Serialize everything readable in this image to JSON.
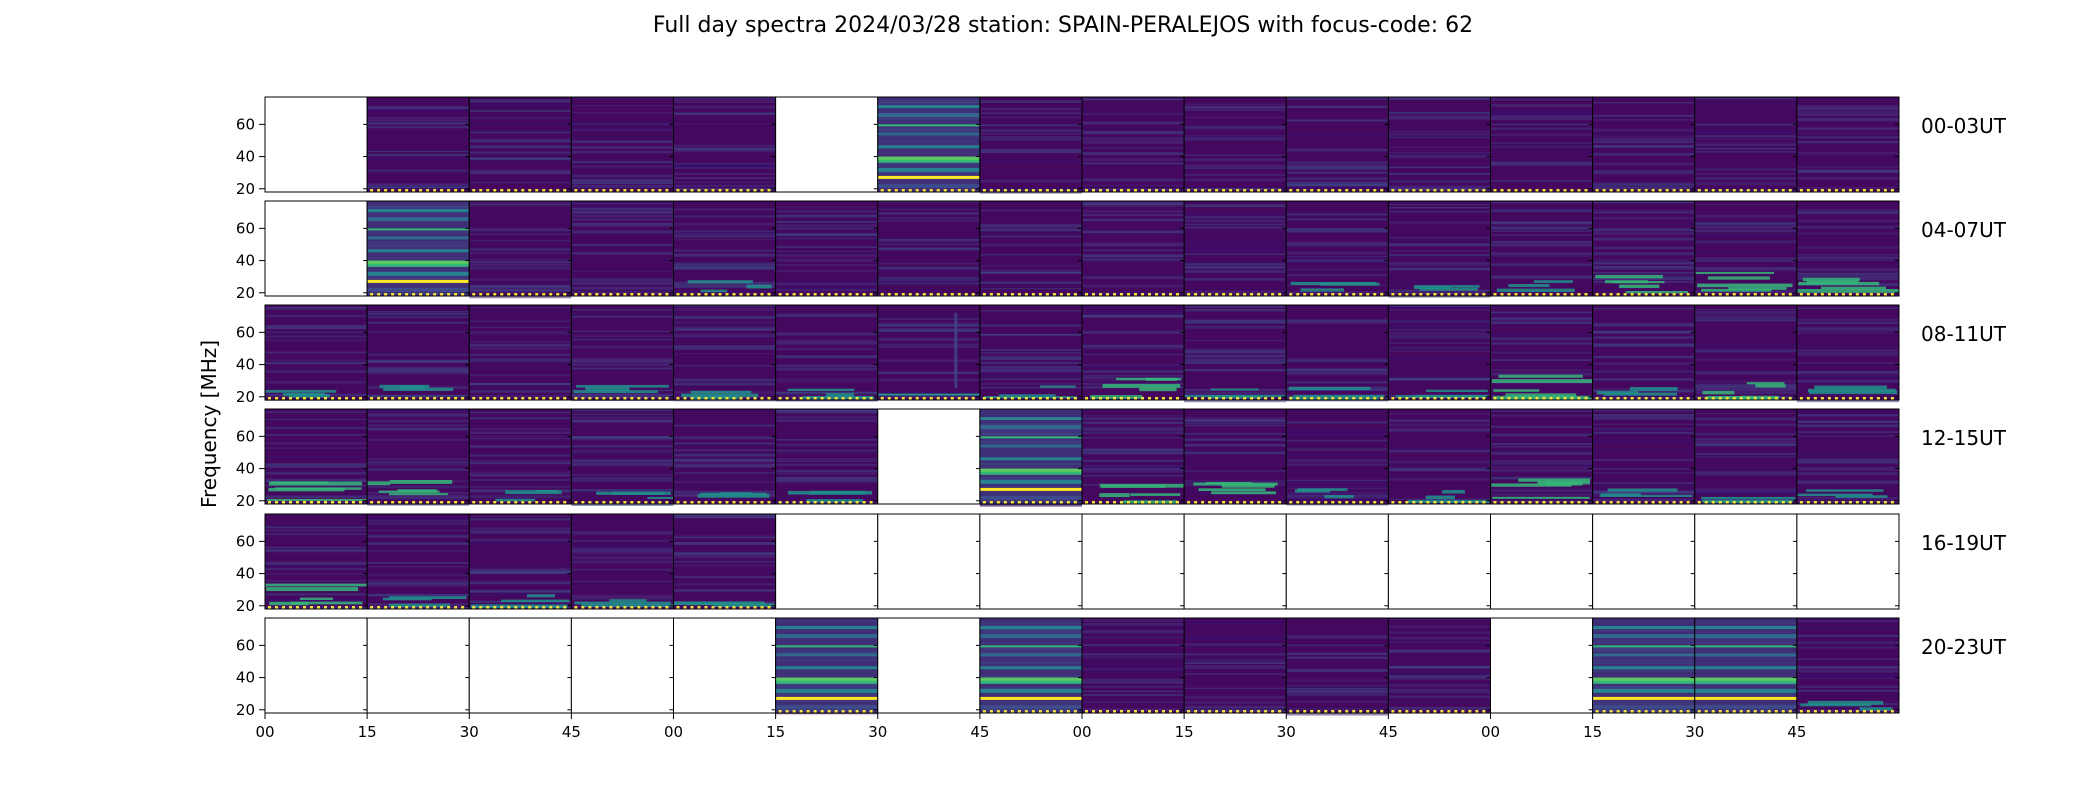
{
  "chart_data": {
    "type": "heatmap",
    "title": "Full day spectra 2024/03/28 station: SPAIN-PERALEJOS with focus-code: 62",
    "ylabel": "Frequency [MHz]",
    "xlabel": "",
    "y_ticks": [
      20,
      40,
      60
    ],
    "ylim": [
      18,
      77
    ],
    "x_ticks": [
      "00",
      "15",
      "30",
      "45",
      "00",
      "15",
      "30",
      "45",
      "00",
      "15",
      "30",
      "45",
      "00",
      "15",
      "30",
      "45"
    ],
    "colormap": "viridis",
    "grid": false,
    "colors": {
      "background_data": "#44095e",
      "empty_panel": "#ffffff",
      "bright_band": "#3fbf74",
      "hot_band": "#fde725",
      "marker_dots": "#f5e43a"
    },
    "rows": [
      {
        "label": "00-03UT",
        "panels": [
          "empty",
          "quiet",
          "quiet",
          "quiet",
          "quiet",
          "empty",
          "bands",
          "quiet",
          "quiet",
          "quiet",
          "quiet",
          "quiet",
          "quiet",
          "quiet",
          "quiet",
          "quiet"
        ]
      },
      {
        "label": "04-07UT",
        "panels": [
          "empty",
          "bands",
          "quiet",
          "quiet",
          "low",
          "quiet",
          "quiet",
          "quiet",
          "quiet",
          "quiet",
          "low",
          "low",
          "low",
          "active",
          "active",
          "active"
        ]
      },
      {
        "label": "08-11UT",
        "panels": [
          "low",
          "low",
          "quiet",
          "low",
          "low",
          "low",
          "spike",
          "low",
          "active",
          "low",
          "low",
          "low",
          "active",
          "low",
          "active",
          "low"
        ]
      },
      {
        "label": "12-15UT",
        "panels": [
          "active",
          "active",
          "low",
          "low",
          "low",
          "low",
          "empty",
          "bands",
          "active",
          "active",
          "low",
          "low",
          "active",
          "low",
          "low",
          "low"
        ]
      },
      {
        "label": "16-19UT",
        "panels": [
          "active",
          "low",
          "low",
          "low",
          "low",
          "empty",
          "empty",
          "empty",
          "empty",
          "empty",
          "empty",
          "empty",
          "empty",
          "empty",
          "empty",
          "empty"
        ]
      },
      {
        "label": "20-23UT",
        "panels": [
          "empty",
          "empty",
          "empty",
          "empty",
          "empty",
          "bands",
          "empty",
          "bands",
          "quiet",
          "quiet",
          "quiet",
          "quiet",
          "empty",
          "bands",
          "bands",
          "low"
        ]
      }
    ]
  }
}
